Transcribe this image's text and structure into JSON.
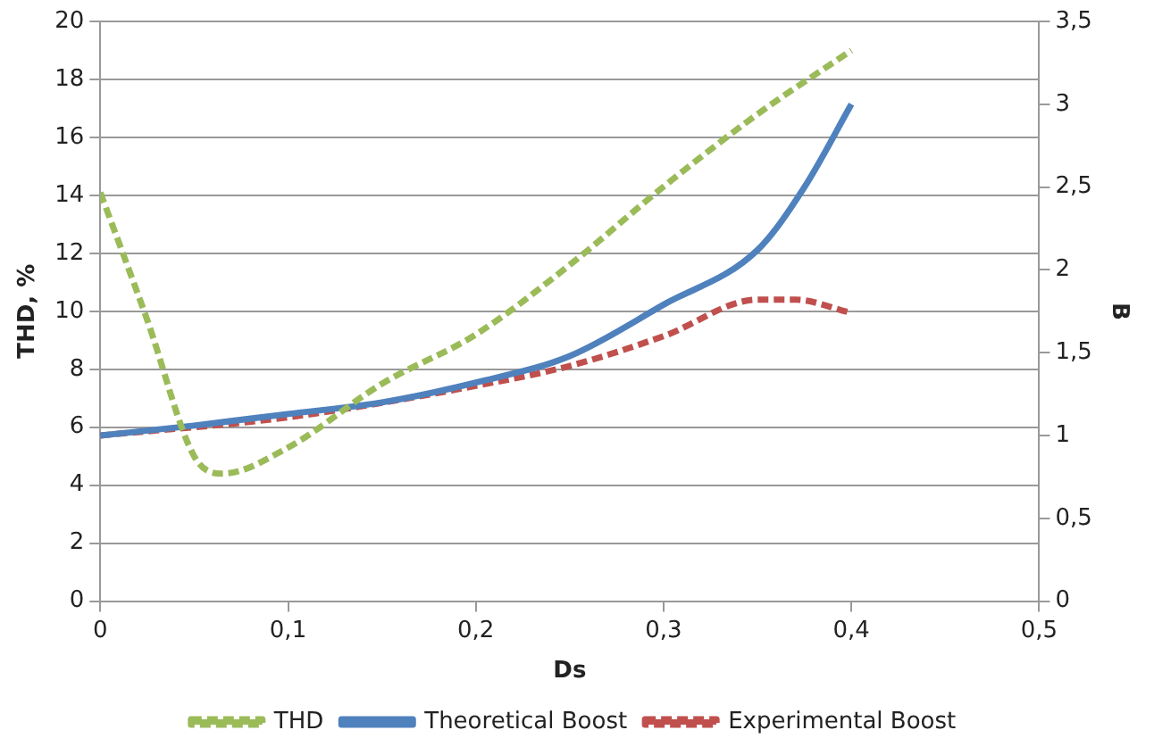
{
  "chart_data": {
    "type": "line",
    "xlabel": "Ds",
    "ylabel": "THD, %",
    "y2label": "B",
    "xlim": [
      0,
      0.5
    ],
    "xticks": [
      0,
      {
        "value": 0.1,
        "label": "0,1"
      },
      {
        "value": 0.2,
        "label": "0,2"
      },
      {
        "value": 0.3,
        "label": "0,3"
      },
      {
        "value": 0.4,
        "label": "0,4"
      },
      {
        "value": 0.5,
        "label": "0,5"
      }
    ],
    "ylim": [
      0,
      20
    ],
    "yticks": [
      0,
      2,
      4,
      6,
      8,
      10,
      12,
      14,
      16,
      18,
      20
    ],
    "y2lim": [
      0,
      3.5
    ],
    "y2ticks": [
      0,
      {
        "value": 0.5,
        "label": "0,5"
      },
      1,
      {
        "value": 1.5,
        "label": "1,5"
      },
      2,
      {
        "value": 2.5,
        "label": "2,5"
      },
      3,
      {
        "value": 3.5,
        "label": "3,5"
      }
    ],
    "grid": "y",
    "legend": "bottom",
    "marker": "none",
    "series": [
      {
        "name": "THD",
        "color": "#9bbb59",
        "line_style": "dashed",
        "x": [
          0,
          0.025,
          0.05,
          0.065,
          0.1,
          0.15,
          0.2,
          0.25,
          0.3,
          0.35,
          0.4
        ],
        "values": [
          14.1,
          9.7,
          5,
          4.4,
          5.3,
          7.5,
          9.2,
          11.6,
          14.3,
          16.8,
          19
        ]
      },
      {
        "name": "Theoretical Boost",
        "color": "#4f81bd",
        "line_style": "solid",
        "axis": "y2",
        "x": [
          0,
          0.05,
          0.1,
          0.15,
          0.2,
          0.25,
          0.3,
          0.35,
          0.375,
          0.4
        ],
        "values": [
          1,
          1.06,
          1.13,
          1.2,
          1.32,
          1.48,
          1.79,
          2.12,
          2.5,
          3
        ]
      },
      {
        "name": "Experimental Boost",
        "color": "#c0504d",
        "line_style": "dashed",
        "axis": "y2",
        "x": [
          0,
          0.1,
          0.2,
          0.25,
          0.3,
          0.35,
          0.37,
          0.4
        ],
        "values": [
          1,
          1.11,
          1.3,
          1.42,
          1.6,
          1.82,
          1.82,
          1.74
        ]
      }
    ]
  }
}
